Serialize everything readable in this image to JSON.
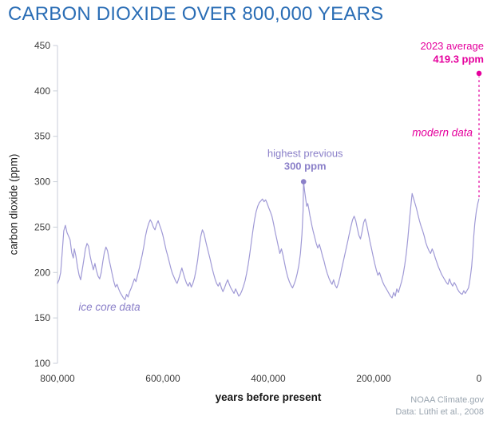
{
  "title": "CARBON DIOXIDE OVER 800,000 YEARS",
  "source": {
    "line1": "NOAA Climate.gov",
    "line2": "Data: Lüthi et al., 2008"
  },
  "colors": {
    "title": "#2a6db5",
    "line": "#a09ad6",
    "purple": "#8b80c9",
    "magenta": "#e5009d",
    "axis": "#c8ced8",
    "tick_text": "#3c3c3c",
    "source": "#9aa5b0"
  },
  "chart_data": {
    "type": "line",
    "title": "CARBON DIOXIDE OVER 800,000 YEARS",
    "xlabel": "years before present",
    "ylabel": "carbon dioxide (ppm)",
    "xlim": [
      800000,
      0
    ],
    "ylim": [
      100,
      450
    ],
    "grid": false,
    "x_ticks": [
      {
        "label": "800,000",
        "years": 800000
      },
      {
        "label": "600,000",
        "years": 600000
      },
      {
        "label": "400,000",
        "years": 400000
      },
      {
        "label": "200,000",
        "years": 200000
      },
      {
        "label": "0",
        "years": 0
      }
    ],
    "y_ticks": [
      450,
      400,
      350,
      300,
      250,
      200,
      150,
      100
    ],
    "series": [
      {
        "name": "ice core data",
        "units": {
          "x": "kyr before present",
          "y": "ppm CO2"
        },
        "points": [
          [
            800,
            188
          ],
          [
            797,
            192
          ],
          [
            794,
            200
          ],
          [
            791,
            222
          ],
          [
            788,
            246
          ],
          [
            785,
            252
          ],
          [
            782,
            244
          ],
          [
            779,
            240
          ],
          [
            776,
            236
          ],
          [
            773,
            222
          ],
          [
            770,
            216
          ],
          [
            768,
            226
          ],
          [
            765,
            218
          ],
          [
            762,
            206
          ],
          [
            759,
            197
          ],
          [
            756,
            192
          ],
          [
            753,
            203
          ],
          [
            750,
            214
          ],
          [
            747,
            226
          ],
          [
            744,
            232
          ],
          [
            741,
            229
          ],
          [
            738,
            218
          ],
          [
            735,
            210
          ],
          [
            732,
            203
          ],
          [
            729,
            210
          ],
          [
            726,
            202
          ],
          [
            723,
            196
          ],
          [
            720,
            193
          ],
          [
            717,
            200
          ],
          [
            714,
            212
          ],
          [
            711,
            222
          ],
          [
            708,
            228
          ],
          [
            705,
            224
          ],
          [
            702,
            214
          ],
          [
            699,
            206
          ],
          [
            696,
            198
          ],
          [
            693,
            190
          ],
          [
            690,
            184
          ],
          [
            687,
            187
          ],
          [
            684,
            182
          ],
          [
            681,
            178
          ],
          [
            678,
            175
          ],
          [
            675,
            172
          ],
          [
            672,
            170
          ],
          [
            669,
            176
          ],
          [
            666,
            173
          ],
          [
            663,
            179
          ],
          [
            660,
            183
          ],
          [
            657,
            188
          ],
          [
            654,
            193
          ],
          [
            651,
            190
          ],
          [
            648,
            197
          ],
          [
            645,
            204
          ],
          [
            642,
            212
          ],
          [
            639,
            220
          ],
          [
            636,
            229
          ],
          [
            633,
            240
          ],
          [
            630,
            248
          ],
          [
            627,
            254
          ],
          [
            624,
            258
          ],
          [
            621,
            255
          ],
          [
            618,
            250
          ],
          [
            615,
            247
          ],
          [
            612,
            253
          ],
          [
            609,
            257
          ],
          [
            606,
            252
          ],
          [
            603,
            247
          ],
          [
            600,
            241
          ],
          [
            597,
            233
          ],
          [
            594,
            225
          ],
          [
            591,
            219
          ],
          [
            588,
            212
          ],
          [
            585,
            205
          ],
          [
            582,
            199
          ],
          [
            579,
            195
          ],
          [
            576,
            191
          ],
          [
            573,
            188
          ],
          [
            570,
            193
          ],
          [
            567,
            199
          ],
          [
            564,
            205
          ],
          [
            561,
            199
          ],
          [
            558,
            193
          ],
          [
            555,
            188
          ],
          [
            552,
            185
          ],
          [
            549,
            189
          ],
          [
            546,
            184
          ],
          [
            543,
            188
          ],
          [
            540,
            194
          ],
          [
            537,
            203
          ],
          [
            534,
            214
          ],
          [
            531,
            228
          ],
          [
            528,
            240
          ],
          [
            525,
            247
          ],
          [
            522,
            243
          ],
          [
            519,
            235
          ],
          [
            516,
            228
          ],
          [
            513,
            221
          ],
          [
            510,
            214
          ],
          [
            507,
            206
          ],
          [
            504,
            199
          ],
          [
            501,
            193
          ],
          [
            498,
            188
          ],
          [
            495,
            185
          ],
          [
            492,
            189
          ],
          [
            489,
            183
          ],
          [
            486,
            179
          ],
          [
            483,
            183
          ],
          [
            480,
            188
          ],
          [
            477,
            192
          ],
          [
            474,
            187
          ],
          [
            471,
            183
          ],
          [
            468,
            180
          ],
          [
            465,
            177
          ],
          [
            462,
            182
          ],
          [
            459,
            178
          ],
          [
            456,
            174
          ],
          [
            453,
            176
          ],
          [
            450,
            180
          ],
          [
            447,
            185
          ],
          [
            444,
            191
          ],
          [
            441,
            199
          ],
          [
            438,
            209
          ],
          [
            435,
            221
          ],
          [
            432,
            234
          ],
          [
            429,
            247
          ],
          [
            426,
            258
          ],
          [
            423,
            267
          ],
          [
            420,
            273
          ],
          [
            417,
            277
          ],
          [
            414,
            279
          ],
          [
            411,
            281
          ],
          [
            408,
            278
          ],
          [
            405,
            280
          ],
          [
            402,
            276
          ],
          [
            399,
            271
          ],
          [
            396,
            267
          ],
          [
            393,
            262
          ],
          [
            390,
            254
          ],
          [
            387,
            245
          ],
          [
            384,
            237
          ],
          [
            381,
            229
          ],
          [
            378,
            221
          ],
          [
            375,
            226
          ],
          [
            372,
            219
          ],
          [
            369,
            210
          ],
          [
            366,
            202
          ],
          [
            363,
            195
          ],
          [
            360,
            190
          ],
          [
            357,
            186
          ],
          [
            354,
            183
          ],
          [
            351,
            187
          ],
          [
            348,
            192
          ],
          [
            345,
            199
          ],
          [
            342,
            208
          ],
          [
            339,
            221
          ],
          [
            336,
            242
          ],
          [
            334,
            268
          ],
          [
            333,
            300
          ],
          [
            331,
            290
          ],
          [
            329,
            281
          ],
          [
            327,
            273
          ],
          [
            325,
            276
          ],
          [
            323,
            270
          ],
          [
            321,
            263
          ],
          [
            319,
            257
          ],
          [
            317,
            251
          ],
          [
            315,
            246
          ],
          [
            312,
            239
          ],
          [
            309,
            232
          ],
          [
            306,
            227
          ],
          [
            303,
            231
          ],
          [
            300,
            225
          ],
          [
            297,
            218
          ],
          [
            294,
            212
          ],
          [
            291,
            205
          ],
          [
            288,
            199
          ],
          [
            285,
            194
          ],
          [
            282,
            190
          ],
          [
            279,
            187
          ],
          [
            276,
            192
          ],
          [
            273,
            186
          ],
          [
            270,
            183
          ],
          [
            267,
            188
          ],
          [
            264,
            195
          ],
          [
            261,
            203
          ],
          [
            258,
            211
          ],
          [
            255,
            219
          ],
          [
            252,
            227
          ],
          [
            249,
            235
          ],
          [
            246,
            243
          ],
          [
            243,
            251
          ],
          [
            240,
            258
          ],
          [
            237,
            262
          ],
          [
            234,
            257
          ],
          [
            231,
            249
          ],
          [
            228,
            241
          ],
          [
            225,
            237
          ],
          [
            222,
            245
          ],
          [
            219,
            255
          ],
          [
            216,
            259
          ],
          [
            213,
            252
          ],
          [
            210,
            243
          ],
          [
            207,
            234
          ],
          [
            204,
            226
          ],
          [
            201,
            218
          ],
          [
            198,
            210
          ],
          [
            195,
            203
          ],
          [
            192,
            197
          ],
          [
            189,
            200
          ],
          [
            186,
            195
          ],
          [
            183,
            190
          ],
          [
            180,
            186
          ],
          [
            177,
            183
          ],
          [
            174,
            180
          ],
          [
            171,
            177
          ],
          [
            168,
            174
          ],
          [
            165,
            172
          ],
          [
            162,
            178
          ],
          [
            159,
            174
          ],
          [
            156,
            182
          ],
          [
            153,
            178
          ],
          [
            150,
            184
          ],
          [
            147,
            190
          ],
          [
            144,
            198
          ],
          [
            141,
            208
          ],
          [
            138,
            221
          ],
          [
            135,
            238
          ],
          [
            132,
            258
          ],
          [
            129,
            276
          ],
          [
            127,
            287
          ],
          [
            125,
            283
          ],
          [
            122,
            277
          ],
          [
            119,
            271
          ],
          [
            116,
            264
          ],
          [
            113,
            257
          ],
          [
            110,
            251
          ],
          [
            107,
            246
          ],
          [
            104,
            240
          ],
          [
            101,
            233
          ],
          [
            98,
            228
          ],
          [
            95,
            224
          ],
          [
            92,
            221
          ],
          [
            89,
            226
          ],
          [
            86,
            222
          ],
          [
            83,
            216
          ],
          [
            80,
            211
          ],
          [
            77,
            206
          ],
          [
            74,
            202
          ],
          [
            71,
            198
          ],
          [
            68,
            195
          ],
          [
            65,
            192
          ],
          [
            62,
            189
          ],
          [
            59,
            187
          ],
          [
            56,
            193
          ],
          [
            53,
            188
          ],
          [
            50,
            185
          ],
          [
            47,
            189
          ],
          [
            44,
            186
          ],
          [
            41,
            182
          ],
          [
            38,
            179
          ],
          [
            35,
            177
          ],
          [
            32,
            176
          ],
          [
            29,
            180
          ],
          [
            26,
            177
          ],
          [
            23,
            180
          ],
          [
            20,
            183
          ],
          [
            18,
            189
          ],
          [
            16,
            197
          ],
          [
            14,
            207
          ],
          [
            12,
            222
          ],
          [
            10,
            240
          ],
          [
            8,
            254
          ],
          [
            6,
            263
          ],
          [
            5,
            268
          ],
          [
            4,
            271
          ],
          [
            3,
            274
          ],
          [
            2,
            277
          ],
          [
            1,
            279
          ],
          [
            0.3,
            281
          ]
        ]
      }
    ],
    "markers": [
      {
        "id": "highest-previous-point",
        "x_kyr": 333,
        "ppm": 300,
        "color": "purple"
      },
      {
        "id": "modern-point",
        "x_kyr": 0,
        "ppm": 419.3,
        "color": "magenta"
      }
    ],
    "dashed_line": {
      "x_kyr": 0,
      "from_ppm": 283,
      "to_ppm": 419.3,
      "color": "magenta"
    },
    "annotations": [
      {
        "id": "highest-previous",
        "lines": [
          "highest previous",
          "300 ppm"
        ],
        "bold_line": 1,
        "color": "purple",
        "x_kyr": 333,
        "ppm": 300,
        "dx": 2,
        "dy": [
          -31,
          -15
        ],
        "anchor": "middle",
        "italic": false,
        "size": 13
      },
      {
        "id": "avg-2023",
        "lines": [
          "2023 average",
          "419.3 ppm"
        ],
        "bold_line": 1,
        "color": "magenta",
        "x_kyr": 0,
        "ppm": 419.3,
        "dx": 6,
        "dy": [
          -30,
          -13.5
        ],
        "anchor": "end",
        "italic": false,
        "size": 13
      },
      {
        "id": "modern-data",
        "lines": [
          "modern data"
        ],
        "bold_line": -1,
        "color": "magenta",
        "x_kyr": 0,
        "ppm": 350,
        "dx": -8,
        "dy": [
          0
        ],
        "anchor": "end",
        "italic": true,
        "size": 13.5
      },
      {
        "id": "ice-core-data",
        "lines": [
          "ice core data"
        ],
        "bold_line": -1,
        "color": "purple",
        "x_kyr": 760,
        "ppm": 158,
        "dx": 0,
        "dy": [
          0
        ],
        "anchor": "start",
        "italic": true,
        "size": 13.5
      }
    ]
  }
}
